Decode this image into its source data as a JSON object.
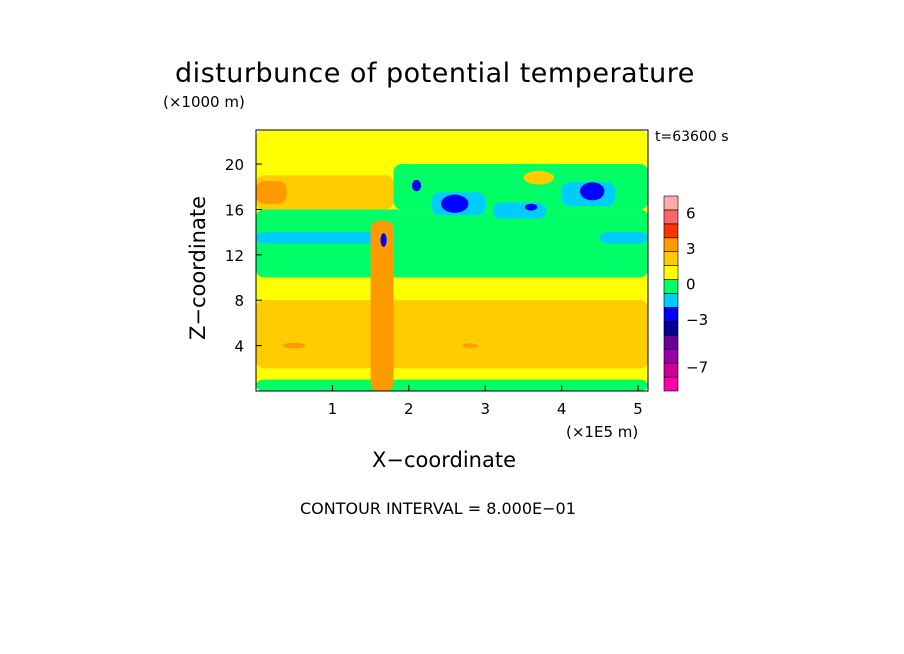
{
  "chart_data": {
    "type": "heatmap",
    "title": "disturbunce of potential temperature",
    "time_label": "t=63600 s",
    "xlabel": "X−coordinate",
    "ylabel": "Z−coordinate",
    "x_unit": "(×1E5 m)",
    "y_unit": "(×1000 m)",
    "footer": "CONTOUR INTERVAL = 8.000E−01",
    "xlim": [
      0,
      5.13
    ],
    "ylim": [
      0,
      23
    ],
    "x_ticks": [
      1,
      2,
      3,
      4,
      5
    ],
    "x_tick_labels": [
      "1",
      "2",
      "3",
      "4",
      "5"
    ],
    "y_ticks": [
      4,
      8,
      12,
      16,
      20
    ],
    "y_tick_labels": [
      "4",
      "8",
      "12",
      "16",
      "20"
    ],
    "colorbar": {
      "levels": 13,
      "colors": [
        "#ff00aa",
        "#cc0099",
        "#9900aa",
        "#660099",
        "#000099",
        "#0000ff",
        "#00ccff",
        "#00ff66",
        "#ffff00",
        "#ffcc00",
        "#ff9900",
        "#ff3300",
        "#ff6666",
        "#ffaaaa"
      ],
      "tick_labels": [
        "6",
        "3",
        "0",
        "−3",
        "−7"
      ],
      "tick_values": [
        6,
        3,
        0,
        -3,
        -7
      ],
      "vmin": -9.0,
      "vmax": 7.5
    },
    "regions": [
      {
        "x0": 0.0,
        "x1": 5.13,
        "z0": 0.0,
        "z1": 23.0,
        "level": "yellow"
      },
      {
        "x0": 0.0,
        "x1": 5.13,
        "z0": 0.0,
        "z1": 1.0,
        "level": "green"
      },
      {
        "x0": 0.0,
        "x1": 5.13,
        "z0": 2.0,
        "z1": 8.0,
        "level": "orange"
      },
      {
        "x0": 0.0,
        "x1": 5.13,
        "z0": 10.0,
        "z1": 16.0,
        "level": "green"
      },
      {
        "x0": 1.8,
        "x1": 5.13,
        "z0": 16.0,
        "z1": 20.0,
        "level": "green"
      },
      {
        "x0": 0.0,
        "x1": 1.8,
        "z0": 16.0,
        "z1": 19.0,
        "level": "orange"
      },
      {
        "x0": 0.0,
        "x1": 0.4,
        "z0": 16.5,
        "z1": 18.5,
        "level": "darkorange"
      },
      {
        "x0": 0.0,
        "x1": 1.8,
        "z0": 13.0,
        "z1": 14.0,
        "level": "cyan"
      },
      {
        "x0": 2.3,
        "x1": 3.0,
        "z0": 15.5,
        "z1": 17.5,
        "level": "cyan"
      },
      {
        "x0": 3.1,
        "x1": 3.8,
        "z0": 15.2,
        "z1": 16.6,
        "level": "cyan"
      },
      {
        "x0": 4.0,
        "x1": 4.7,
        "z0": 16.3,
        "z1": 18.4,
        "level": "cyan"
      },
      {
        "x0": 1.5,
        "x1": 1.8,
        "z0": 0.0,
        "z1": 15.0,
        "level": "darkorange"
      },
      {
        "x0": 4.5,
        "x1": 5.13,
        "z0": 13.0,
        "z1": 14.0,
        "level": "cyan"
      }
    ],
    "cells": [
      {
        "x": 2.6,
        "z": 16.5,
        "rx": 0.18,
        "rz": 0.8,
        "level": "blue"
      },
      {
        "x": 3.6,
        "z": 16.2,
        "rx": 0.08,
        "rz": 0.3,
        "level": "blue"
      },
      {
        "x": 4.4,
        "z": 17.6,
        "rx": 0.16,
        "rz": 0.8,
        "level": "blue"
      },
      {
        "x": 2.1,
        "z": 18.1,
        "rx": 0.06,
        "rz": 0.5,
        "level": "blue"
      },
      {
        "x": 1.67,
        "z": 13.3,
        "rx": 0.04,
        "rz": 0.6,
        "level": "blue"
      },
      {
        "x": 3.7,
        "z": 18.8,
        "rx": 0.2,
        "rz": 0.6,
        "level": "orange"
      },
      {
        "x": 2.8,
        "z": 4.0,
        "rx": 0.1,
        "rz": 0.2,
        "level": "darkorange"
      },
      {
        "x": 0.5,
        "z": 4.0,
        "rx": 0.15,
        "rz": 0.25,
        "level": "darkorange"
      }
    ]
  }
}
